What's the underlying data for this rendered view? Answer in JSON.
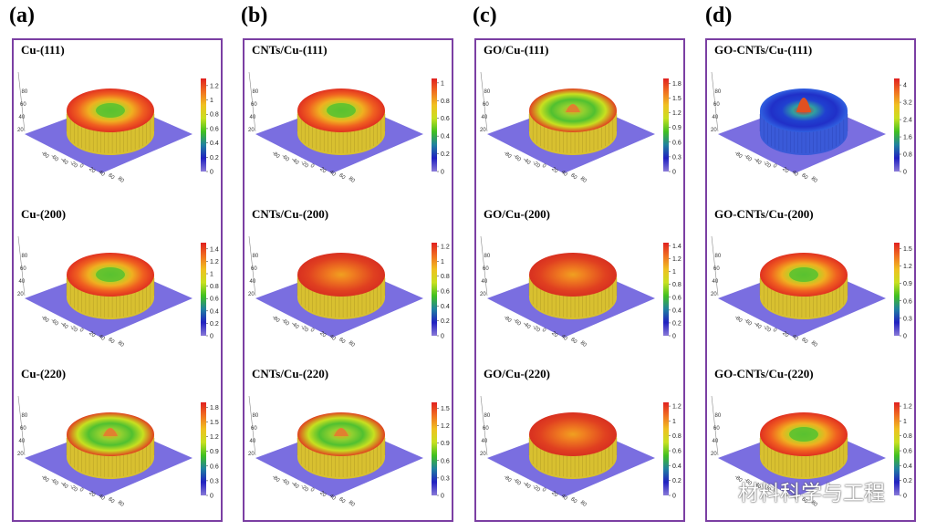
{
  "figure": {
    "columns": [
      {
        "label": "(a)",
        "panels": [
          {
            "title": "Cu-(111)",
            "cbar_ticks": [
              "1.2",
              "1",
              "0.8",
              "0.6",
              "0.4",
              "0.2",
              "0"
            ],
            "cbar_max": 1.3,
            "center": "dip",
            "axis_left": [
              "20",
              "40",
              "60",
              "80"
            ],
            "axis_bottom": [
              "-80",
              "-60",
              "-40",
              "-20",
              "0",
              "20",
              "40",
              "60",
              "80"
            ]
          },
          {
            "title": "Cu-(200)",
            "cbar_ticks": [
              "1.4",
              "1.2",
              "1",
              "0.8",
              "0.6",
              "0.4",
              "0.2",
              "0"
            ],
            "cbar_max": 1.5,
            "center": "dip",
            "axis_left": [
              "20",
              "40",
              "60",
              "80"
            ],
            "axis_bottom": [
              "-80",
              "-60",
              "-40",
              "-20",
              "0",
              "20",
              "40",
              "60",
              "80"
            ]
          },
          {
            "title": "Cu-(220)",
            "cbar_ticks": [
              "1.8",
              "1.5",
              "1.2",
              "0.9",
              "0.6",
              "0.3",
              "0"
            ],
            "cbar_max": 1.9,
            "center": "peak",
            "axis_left": [
              "20",
              "40",
              "60",
              "80"
            ],
            "axis_bottom": [
              "-80",
              "-60",
              "-40",
              "-20",
              "0",
              "20",
              "40",
              "60",
              "80"
            ]
          }
        ]
      },
      {
        "label": "(b)",
        "panels": [
          {
            "title": "CNTs/Cu-(111)",
            "cbar_ticks": [
              "1",
              "0.8",
              "0.6",
              "0.4",
              "0.2",
              "0"
            ],
            "cbar_max": 1.05,
            "center": "dip",
            "axis_left": [
              "20",
              "40",
              "60",
              "80"
            ],
            "axis_bottom": [
              "-80",
              "-60",
              "-40",
              "-20",
              "0",
              "20",
              "40",
              "60",
              "80"
            ]
          },
          {
            "title": "CNTs/Cu-(200)",
            "cbar_ticks": [
              "1.2",
              "1",
              "0.8",
              "0.6",
              "0.4",
              "0.2",
              "0"
            ],
            "cbar_max": 1.25,
            "center": "flat",
            "axis_left": [
              "20",
              "40",
              "60",
              "80"
            ],
            "axis_bottom": [
              "-80",
              "-60",
              "-40",
              "-20",
              "0",
              "20",
              "40",
              "60",
              "80"
            ]
          },
          {
            "title": "CNTs/Cu-(220)",
            "cbar_ticks": [
              "1.5",
              "1.2",
              "0.9",
              "0.6",
              "0.3",
              "0"
            ],
            "cbar_max": 1.6,
            "center": "peak",
            "axis_left": [
              "20",
              "40",
              "60",
              "80"
            ],
            "axis_bottom": [
              "-80",
              "-60",
              "-40",
              "-20",
              "0",
              "20",
              "40",
              "60",
              "80"
            ]
          }
        ]
      },
      {
        "label": "(c)",
        "panels": [
          {
            "title": "GO/Cu-(111)",
            "cbar_ticks": [
              "1.8",
              "1.5",
              "1.2",
              "0.9",
              "0.6",
              "0.3",
              "0"
            ],
            "cbar_max": 1.9,
            "center": "peak",
            "axis_left": [
              "20",
              "40",
              "60",
              "80"
            ],
            "axis_bottom": [
              "-80",
              "-60",
              "-40",
              "-20",
              "0",
              "20",
              "40",
              "60",
              "80"
            ]
          },
          {
            "title": "GO/Cu-(200)",
            "cbar_ticks": [
              "1.4",
              "1.2",
              "1",
              "0.8",
              "0.6",
              "0.4",
              "0.2",
              "0"
            ],
            "cbar_max": 1.45,
            "center": "flat",
            "axis_left": [
              "20",
              "40",
              "60",
              "80"
            ],
            "axis_bottom": [
              "-80",
              "-60",
              "-40",
              "-20",
              "0",
              "20",
              "40",
              "60",
              "80"
            ]
          },
          {
            "title": "GO/Cu-(220)",
            "cbar_ticks": [
              "1.2",
              "1",
              "0.8",
              "0.6",
              "0.4",
              "0.2",
              "0"
            ],
            "cbar_max": 1.25,
            "center": "flat",
            "axis_left": [
              "20",
              "40",
              "60",
              "80"
            ],
            "axis_bottom": [
              "-80",
              "-60",
              "-40",
              "-20",
              "0",
              "20",
              "40",
              "60",
              "80"
            ]
          }
        ]
      },
      {
        "label": "(d)",
        "panels": [
          {
            "title": "GO-CNTs/Cu-(111)",
            "cbar_ticks": [
              "4",
              "3.2",
              "2.4",
              "1.6",
              "0.8",
              "0"
            ],
            "cbar_max": 4.3,
            "center": "spike",
            "axis_left": [
              "20",
              "40",
              "60",
              "80"
            ],
            "axis_bottom": [
              "-80",
              "-60",
              "-40",
              "-20",
              "0",
              "20",
              "40",
              "60",
              "80"
            ]
          },
          {
            "title": "GO-CNTs/Cu-(200)",
            "cbar_ticks": [
              "1.5",
              "1.2",
              "0.9",
              "0.6",
              "0.3",
              "0"
            ],
            "cbar_max": 1.6,
            "center": "dip",
            "axis_left": [
              "20",
              "40",
              "60",
              "80"
            ],
            "axis_bottom": [
              "-80",
              "-60",
              "-40",
              "-20",
              "0",
              "20",
              "40",
              "60",
              "80"
            ]
          },
          {
            "title": "GO-CNTs/Cu-(220)",
            "cbar_ticks": [
              "1.2",
              "1",
              "0.8",
              "0.6",
              "0.4",
              "0.2",
              "0"
            ],
            "cbar_max": 1.25,
            "center": "dip",
            "axis_left": [
              "20",
              "40",
              "60",
              "80"
            ],
            "axis_bottom": [
              "-80",
              "-60",
              "-40",
              "-20",
              "0",
              "20",
              "40",
              "60",
              "80"
            ]
          }
        ]
      }
    ],
    "colors": {
      "frame": "#7b3fa3",
      "base_plane": "#7a6ee0",
      "colormap": [
        "#e02020",
        "#f07020",
        "#f0c020",
        "#c8e020",
        "#40c020",
        "#2080a0",
        "#2020c0",
        "#8a7ad8"
      ]
    }
  },
  "watermark": {
    "icon": "wechat-icon",
    "text": "材料科学与工程"
  }
}
